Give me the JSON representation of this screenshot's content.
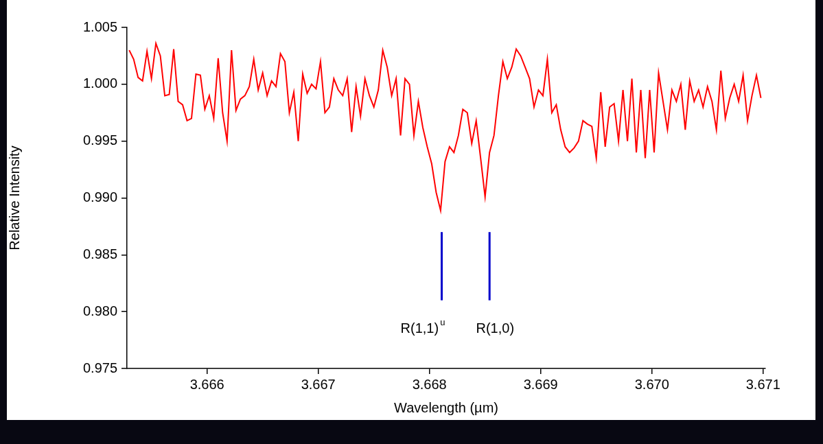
{
  "chart_data": {
    "type": "line",
    "x_label": "Wavelength (µm)",
    "y_label": "Relative Intensity",
    "x": [
      3.6653,
      3.66534,
      3.66538,
      3.66542,
      3.66546,
      3.6655,
      3.66554,
      3.66558,
      3.66562,
      3.66566,
      3.6657,
      3.66574,
      3.66578,
      3.66582,
      3.66586,
      3.6659,
      3.66594,
      3.66598,
      3.66602,
      3.66606,
      3.6661,
      3.66614,
      3.66618,
      3.66622,
      3.66626,
      3.6663,
      3.66634,
      3.66638,
      3.66642,
      3.66646,
      3.6665,
      3.66654,
      3.66658,
      3.66662,
      3.66666,
      3.6667,
      3.66674,
      3.66678,
      3.66682,
      3.66686,
      3.6669,
      3.66694,
      3.66698,
      3.66702,
      3.66706,
      3.6671,
      3.66714,
      3.66718,
      3.66722,
      3.66726,
      3.6673,
      3.66734,
      3.66738,
      3.66742,
      3.66746,
      3.6675,
      3.66754,
      3.66758,
      3.66762,
      3.66766,
      3.6677,
      3.66774,
      3.66778,
      3.66782,
      3.66786,
      3.6679,
      3.66794,
      3.66798,
      3.66802,
      3.66806,
      3.6681,
      3.66814,
      3.66818,
      3.66822,
      3.66826,
      3.6683,
      3.66834,
      3.66838,
      3.66842,
      3.66846,
      3.6685,
      3.66854,
      3.66858,
      3.66862,
      3.66866,
      3.6687,
      3.66874,
      3.66878,
      3.66882,
      3.66886,
      3.6689,
      3.66894,
      3.66898,
      3.66902,
      3.66906,
      3.6691,
      3.66914,
      3.66918,
      3.66922,
      3.66926,
      3.6693,
      3.66934,
      3.66938,
      3.66942,
      3.66946,
      3.6695,
      3.66954,
      3.66958,
      3.66962,
      3.66966,
      3.6697,
      3.66974,
      3.66978,
      3.66982,
      3.66986,
      3.6699,
      3.66994,
      3.66998,
      3.67002,
      3.67006,
      3.6701,
      3.67014,
      3.67018,
      3.67022,
      3.67026,
      3.6703,
      3.67034,
      3.67038,
      3.67042,
      3.67046,
      3.6705,
      3.67054,
      3.67058,
      3.67062,
      3.67066,
      3.6707,
      3.67074,
      3.67078,
      3.67082,
      3.67086,
      3.6709,
      3.67094,
      3.67098
    ],
    "values": [
      1.003,
      1.0022,
      1.0006,
      1.0003,
      1.0029,
      1.0005,
      1.0036,
      1.0025,
      0.999,
      0.9991,
      1.0031,
      0.9985,
      0.9982,
      0.9968,
      0.997,
      1.0009,
      1.0008,
      0.9978,
      0.999,
      0.997,
      1.0023,
      0.9975,
      0.995,
      1.003,
      0.9977,
      0.9987,
      0.999,
      0.9998,
      1.0022,
      0.9995,
      1.001,
      0.999,
      1.0003,
      0.9998,
      1.0027,
      1.002,
      0.9975,
      0.9993,
      0.995,
      1.0009,
      0.9992,
      1,
      0.9996,
      1.002,
      0.9975,
      0.998,
      1.0005,
      0.9995,
      0.999,
      1.0005,
      0.9958,
      0.9998,
      0.9972,
      1.0005,
      0.999,
      0.998,
      0.9995,
      1.003,
      1.0015,
      0.999,
      1.0005,
      0.9955,
      1.0005,
      1,
      0.9955,
      0.9985,
      0.9962,
      0.9945,
      0.993,
      0.9905,
      0.9889,
      0.9932,
      0.9945,
      0.994,
      0.9955,
      0.9978,
      0.9975,
      0.9948,
      0.9968,
      0.9935,
      0.9901,
      0.994,
      0.9955,
      0.999,
      1.002,
      1.0005,
      1.0015,
      1.0031,
      1.0025,
      1.0015,
      1.0005,
      0.998,
      0.9995,
      0.999,
      1.0022,
      0.9975,
      0.9982,
      0.996,
      0.9945,
      0.994,
      0.9944,
      0.995,
      0.9968,
      0.9965,
      0.9963,
      0.9935,
      0.9993,
      0.9945,
      0.998,
      0.9983,
      0.995,
      0.9995,
      0.995,
      1.0005,
      0.994,
      0.9995,
      0.9935,
      0.9995,
      0.994,
      1.001,
      0.9985,
      0.996,
      0.9995,
      0.9985,
      1,
      0.996,
      1.0003,
      0.9985,
      0.9995,
      0.998,
      0.9998,
      0.9985,
      0.996,
      1.0012,
      0.997,
      0.9988,
      1,
      0.9985,
      1.0008,
      0.9968,
      0.999,
      1.0008,
      0.9988
    ],
    "color": "#ff0000",
    "xlim": [
      3.66528,
      3.67102
    ],
    "xticks": [
      3.666,
      3.667,
      3.668,
      3.669,
      {
        "value": 3.67,
        "label": "3.670"
      },
      3.671
    ],
    "ylim": [
      0.975,
      1.005
    ],
    "yticks": [
      0.975,
      {
        "value": 0.98,
        "label": "0.980"
      },
      0.985,
      {
        "value": 0.99,
        "label": "0.990"
      },
      0.995,
      {
        "value": 1,
        "label": "1.000"
      },
      1.005
    ],
    "grid": false,
    "annotations": [
      {
        "x": 3.66811,
        "y": [
          0.981,
          0.987
        ],
        "text": "R(1,1)",
        "superscript": "u",
        "color": "#0000cc",
        "text_x": 3.66794,
        "text_y": 0.9785
      },
      {
        "x": 3.66854,
        "y": [
          0.981,
          0.987
        ],
        "text": "R(1,0)",
        "color": "#0000cc",
        "text_x": 3.66859,
        "text_y": 0.9785
      }
    ]
  }
}
